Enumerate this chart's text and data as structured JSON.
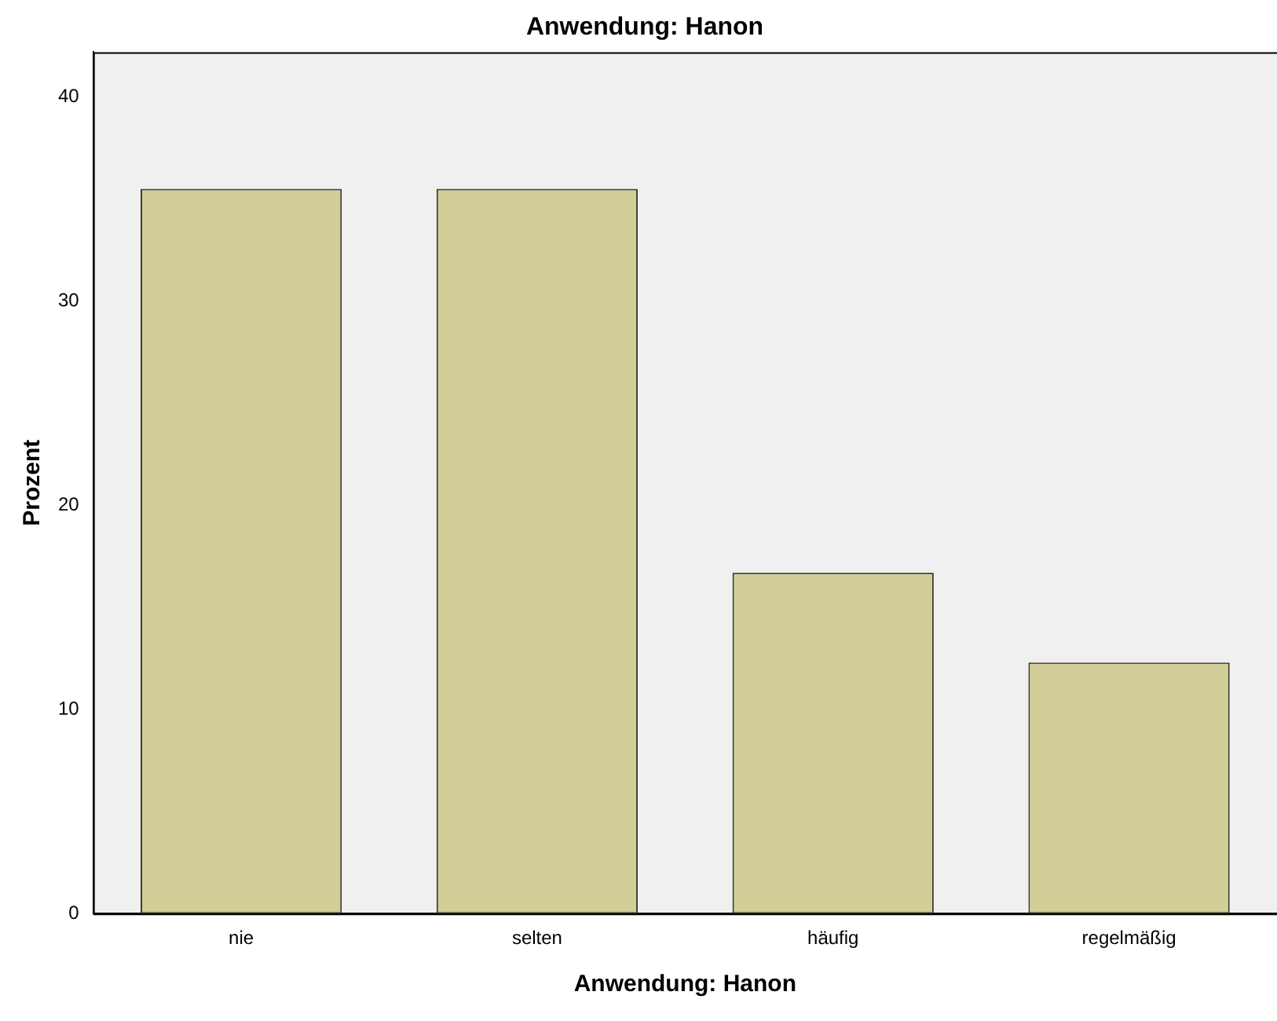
{
  "chart_data": {
    "type": "bar",
    "title": "Anwendung: Hanon",
    "xlabel": "Anwendung: Hanon",
    "ylabel": "Prozent",
    "categories": [
      "nie",
      "selten",
      "häufig",
      "regelmäßig"
    ],
    "values": [
      35.5,
      35.5,
      16.7,
      12.3
    ],
    "color": "#d3ce97",
    "ylim": [
      0,
      42.2
    ],
    "yticks": [
      0,
      10,
      20,
      30,
      40
    ],
    "grid": false,
    "legend": false
  }
}
